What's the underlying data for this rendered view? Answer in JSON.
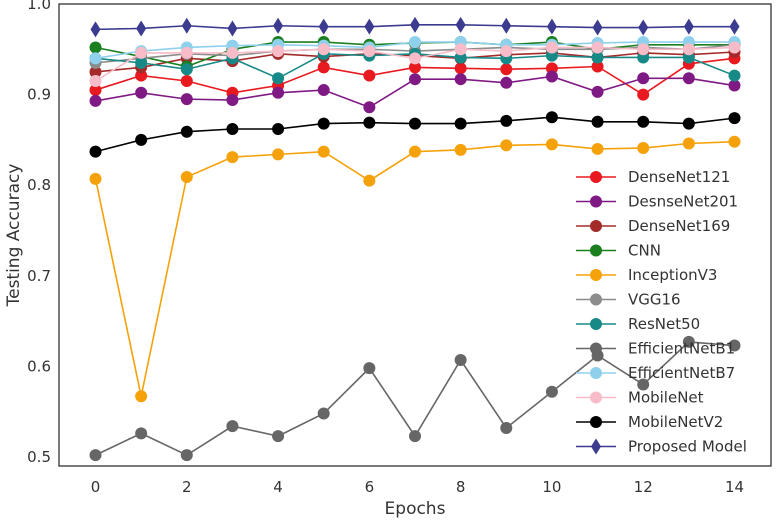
{
  "chart_data": {
    "type": "line",
    "title": "",
    "xlabel": "Epochs",
    "ylabel": "Testing Accuracy",
    "xlim": [
      -0.8,
      14.8
    ],
    "ylim": [
      0.49,
      1.0
    ],
    "xticks": [
      0,
      2,
      4,
      6,
      8,
      10,
      12,
      14
    ],
    "yticks": [
      0.5,
      0.6,
      0.7,
      0.8,
      0.9,
      1.0
    ],
    "ytick_labels": [
      "0.5",
      "0.6",
      "0.7",
      "0.8",
      "0.9",
      "1.0"
    ],
    "grid": false,
    "legend_position": "bottom-right",
    "x": [
      0,
      1,
      2,
      3,
      4,
      5,
      6,
      7,
      8,
      9,
      10,
      11,
      12,
      13,
      14
    ],
    "series": [
      {
        "name": "DenseNet121",
        "color": "#e8191f",
        "marker": "circle",
        "values": [
          0.905,
          0.921,
          0.915,
          0.902,
          0.91,
          0.93,
          0.921,
          0.93,
          0.929,
          0.928,
          0.929,
          0.931,
          0.9,
          0.934,
          0.94
        ]
      },
      {
        "name": "DesnseNet201",
        "color": "#7f1a84",
        "marker": "circle",
        "values": [
          0.893,
          0.902,
          0.895,
          0.894,
          0.902,
          0.905,
          0.886,
          0.917,
          0.917,
          0.913,
          0.92,
          0.903,
          0.918,
          0.918,
          0.91
        ]
      },
      {
        "name": "DenseNet169",
        "color": "#a52a2a",
        "marker": "circle",
        "values": [
          0.925,
          0.93,
          0.94,
          0.937,
          0.945,
          0.942,
          0.945,
          0.943,
          0.94,
          0.944,
          0.946,
          0.941,
          0.946,
          0.944,
          0.947
        ]
      },
      {
        "name": "CNN",
        "color": "#1a7f1f",
        "marker": "circle",
        "values": [
          0.952,
          0.942,
          0.931,
          0.95,
          0.958,
          0.958,
          0.955,
          0.957,
          0.958,
          0.955,
          0.958,
          0.95,
          0.955,
          0.955,
          0.955
        ]
      },
      {
        "name": "InceptionV3",
        "color": "#f5a20a",
        "marker": "circle",
        "values": [
          0.807,
          0.567,
          0.809,
          0.831,
          0.834,
          0.837,
          0.805,
          0.837,
          0.839,
          0.844,
          0.845,
          0.84,
          0.841,
          0.846,
          0.848
        ]
      },
      {
        "name": "VGG16",
        "color": "#8c8c8c",
        "marker": "circle",
        "values": [
          0.935,
          0.94,
          0.945,
          0.943,
          0.948,
          0.95,
          0.95,
          0.948,
          0.95,
          0.952,
          0.95,
          0.95,
          0.952,
          0.95,
          0.955
        ]
      },
      {
        "name": "ResNet50",
        "color": "#178a88",
        "marker": "circle",
        "values": [
          0.94,
          0.935,
          0.928,
          0.94,
          0.918,
          0.945,
          0.943,
          0.945,
          0.941,
          0.94,
          0.943,
          0.941,
          0.941,
          0.941,
          0.921
        ]
      },
      {
        "name": "EfficientNetB1",
        "color": "#666666",
        "marker": "circle",
        "values": [
          0.502,
          0.526,
          0.502,
          0.534,
          0.523,
          0.548,
          0.598,
          0.523,
          0.607,
          0.532,
          0.572,
          0.612,
          0.58,
          0.627,
          0.623
        ]
      },
      {
        "name": "EfficientNetB7",
        "color": "#8fd1ec",
        "marker": "circle",
        "values": [
          0.94,
          0.948,
          0.952,
          0.954,
          0.955,
          0.954,
          0.952,
          0.958,
          0.958,
          0.955,
          0.955,
          0.957,
          0.958,
          0.958,
          0.958
        ]
      },
      {
        "name": "MobileNet",
        "color": "#f7bcc8",
        "marker": "circle",
        "values": [
          0.915,
          0.946,
          0.946,
          0.946,
          0.948,
          0.95,
          0.948,
          0.94,
          0.95,
          0.948,
          0.952,
          0.952,
          0.95,
          0.95,
          0.952
        ]
      },
      {
        "name": "MobileNetV2",
        "color": "#000000",
        "marker": "circle",
        "values": [
          0.837,
          0.85,
          0.859,
          0.862,
          0.862,
          0.868,
          0.869,
          0.868,
          0.868,
          0.871,
          0.875,
          0.87,
          0.87,
          0.868,
          0.874
        ]
      },
      {
        "name": "Proposed Model",
        "color": "#3b3b8f",
        "marker": "diamond",
        "values": [
          0.972,
          0.973,
          0.976,
          0.973,
          0.976,
          0.975,
          0.975,
          0.977,
          0.977,
          0.976,
          0.975,
          0.974,
          0.974,
          0.975,
          0.975
        ]
      }
    ]
  }
}
